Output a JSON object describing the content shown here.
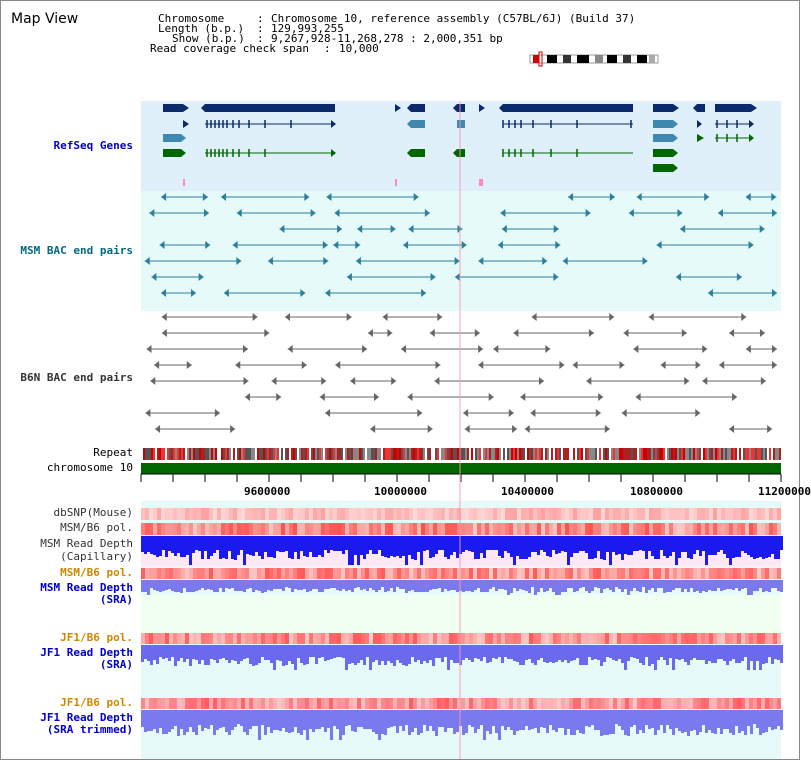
{
  "page_title": "Map View",
  "header": {
    "chromosome_key": "Chromosome",
    "chromosome_value": "Chromosome 10, reference assembly (C57BL/6J) (Build 37)",
    "length_key": "Length (b.p.)",
    "length_value": "129,993,255",
    "show_key": "Show (b.p.)",
    "show_value": "9,267,928-11,268,278 : 2,000,351 bp",
    "coverage_key": "Read coverage check span",
    "coverage_value": "10,000"
  },
  "tracks": {
    "refseq": "RefSeq Genes",
    "msm_bac": "MSM BAC end pairs",
    "b6n_bac": "B6N BAC end pairs",
    "repeat": "Repeat",
    "chromosome": "chromosome 10",
    "dbsnp": "dbSNP(Mouse)",
    "msm_b6_pol_1": "MSM/B6 pol.",
    "msm_read_depth_cap_1": "MSM Read Depth",
    "msm_read_depth_cap_2": "(Capillary)",
    "msm_b6_pol_2": "MSM/B6 pol.",
    "msm_read_depth_sra_1": "MSM Read Depth",
    "msm_read_depth_sra_2": "(SRA)",
    "jf1_b6_pol_1": "JF1/B6 pol.",
    "jf1_read_depth_sra_1": "JF1 Read Depth",
    "jf1_read_depth_sra_2": "(SRA)",
    "jf1_b6_pol_2": "JF1/B6 pol.",
    "jf1_read_depth_trim_1": "JF1 Read Depth",
    "jf1_read_depth_trim_2": "(SRA trimmed)"
  },
  "axis_ticks": [
    "9600000",
    "10000000",
    "10400000",
    "10800000",
    "11200000"
  ],
  "colors": {
    "refseq_bg": "#dff0fa",
    "msm_bg": "#e6fafa",
    "gene_dark": "#0a2a6a",
    "gene_mid": "#3f88b0",
    "gene_green": "#006600",
    "msm_line": "#2a7f99",
    "b6n_line": "#666666",
    "chromosome_bar": "#006600",
    "depth_blue": "#1a1aee",
    "depth_light": "#7070ee"
  }
}
